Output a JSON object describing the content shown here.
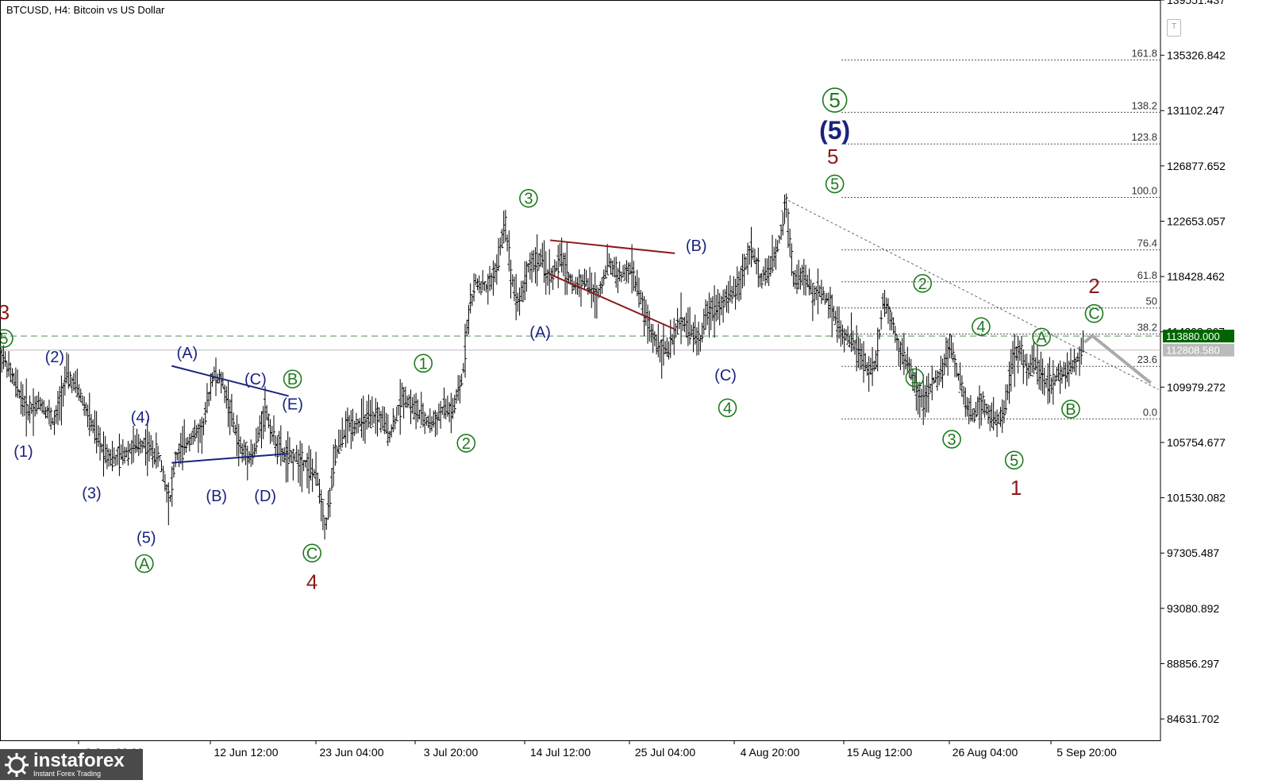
{
  "header": {
    "title": "BTCUSD, H4:  Bitcoin vs US Dollar"
  },
  "toolbar": {
    "t_label": "T"
  },
  "brand": {
    "name": "instaforex",
    "tagline": "Instant Forex Trading"
  },
  "colors": {
    "candle": "#000000",
    "wave_green": "#1e7a1e",
    "wave_blue": "#1a237e",
    "wave_red": "#8b1a1a",
    "fib_line": "#555555",
    "dashed_level": "#6a9a6a",
    "current_level": "#bbbbbb",
    "forecast": "#aaaaaa",
    "label_green_bg": "#006400"
  },
  "chart_data": {
    "type": "line",
    "title": "BTCUSD, H4:  Bitcoin vs US Dollar",
    "ylim": [
      83000,
      139551.437
    ],
    "y_tick_labels": [
      "139551.437",
      "135326.842",
      "131102.247",
      "126877.652",
      "122653.057",
      "118428.462",
      "114203.867",
      "109979.272",
      "105754.677",
      "101530.082",
      "97305.487",
      "93080.892",
      "88856.297",
      "84631.702"
    ],
    "x_tick_labels": [
      "2 Jun 20:00",
      "12 Jun 12:00",
      "23 Jun 04:00",
      "3 Jul 20:00",
      "14 Jul 12:00",
      "25 Jul 04:00",
      "4 Aug 20:00",
      "15 Aug 12:00",
      "26 Aug 04:00",
      "5 Sep 20:00"
    ],
    "series": [
      {
        "type": "price-path",
        "points": [
          [
            0,
            112800
          ],
          [
            0.35,
            110500
          ],
          [
            0.7,
            108200
          ],
          [
            1.05,
            108800
          ],
          [
            1.4,
            107200
          ],
          [
            1.7,
            110900
          ],
          [
            2.0,
            109800
          ],
          [
            2.3,
            107500
          ],
          [
            2.6,
            105400
          ],
          [
            2.95,
            104400
          ],
          [
            3.3,
            105200
          ],
          [
            3.7,
            105700
          ],
          [
            4.1,
            104500
          ],
          [
            4.35,
            101200
          ],
          [
            4.5,
            104500
          ],
          [
            4.9,
            106200
          ],
          [
            5.2,
            106700
          ],
          [
            5.45,
            110900
          ],
          [
            5.7,
            110400
          ],
          [
            6.0,
            107000
          ],
          [
            6.2,
            105000
          ],
          [
            6.5,
            104800
          ],
          [
            6.8,
            108400
          ],
          [
            7.0,
            106200
          ],
          [
            7.3,
            104600
          ],
          [
            7.6,
            104600
          ],
          [
            7.85,
            104100
          ],
          [
            8.15,
            102900
          ],
          [
            8.35,
            99200
          ],
          [
            8.6,
            104800
          ],
          [
            8.9,
            107000
          ],
          [
            9.3,
            107300
          ],
          [
            9.7,
            107800
          ],
          [
            10.0,
            106400
          ],
          [
            10.35,
            109400
          ],
          [
            10.6,
            108400
          ],
          [
            10.9,
            107400
          ],
          [
            11.1,
            107200
          ],
          [
            11.4,
            108400
          ],
          [
            11.6,
            108000
          ],
          [
            11.85,
            110500
          ],
          [
            12.0,
            115500
          ],
          [
            12.2,
            118000
          ],
          [
            12.5,
            117500
          ],
          [
            12.75,
            119200
          ],
          [
            12.95,
            122800
          ],
          [
            13.1,
            118600
          ],
          [
            13.3,
            116300
          ],
          [
            13.55,
            119200
          ],
          [
            13.85,
            119800
          ],
          [
            14.1,
            118300
          ],
          [
            14.4,
            119800
          ],
          [
            14.7,
            117600
          ],
          [
            15.0,
            118200
          ],
          [
            15.3,
            116800
          ],
          [
            15.6,
            119500
          ],
          [
            15.9,
            118400
          ],
          [
            16.2,
            119000
          ],
          [
            16.45,
            116400
          ],
          [
            16.7,
            114000
          ],
          [
            16.95,
            113000
          ],
          [
            17.15,
            112800
          ],
          [
            17.45,
            115200
          ],
          [
            17.7,
            114300
          ],
          [
            17.95,
            113500
          ],
          [
            18.15,
            115800
          ],
          [
            18.45,
            116300
          ],
          [
            18.75,
            117000
          ],
          [
            19.0,
            118200
          ],
          [
            19.25,
            120800
          ],
          [
            19.5,
            118200
          ],
          [
            19.75,
            119000
          ],
          [
            19.95,
            120800
          ],
          [
            20.15,
            124200
          ],
          [
            20.35,
            118200
          ],
          [
            20.6,
            118500
          ],
          [
            20.85,
            117000
          ],
          [
            21.05,
            117300
          ],
          [
            21.3,
            116300
          ],
          [
            21.55,
            114200
          ],
          [
            21.85,
            113500
          ],
          [
            22.05,
            112500
          ],
          [
            22.25,
            111200
          ],
          [
            22.45,
            111800
          ],
          [
            22.65,
            116800
          ],
          [
            22.85,
            115300
          ],
          [
            23.05,
            113000
          ],
          [
            23.3,
            111500
          ],
          [
            23.5,
            109800
          ],
          [
            23.7,
            108800
          ],
          [
            23.95,
            110500
          ],
          [
            24.15,
            111000
          ],
          [
            24.35,
            113400
          ],
          [
            24.55,
            111000
          ],
          [
            24.75,
            108800
          ],
          [
            24.95,
            107700
          ],
          [
            25.15,
            109000
          ],
          [
            25.35,
            107900
          ],
          [
            25.55,
            107200
          ],
          [
            25.75,
            108400
          ],
          [
            25.95,
            111800
          ],
          [
            26.15,
            112900
          ],
          [
            26.35,
            111300
          ],
          [
            26.55,
            111800
          ],
          [
            26.75,
            110500
          ],
          [
            26.95,
            110200
          ],
          [
            27.15,
            110900
          ],
          [
            27.35,
            111200
          ],
          [
            27.6,
            111900
          ],
          [
            27.8,
            113400
          ]
        ]
      },
      {
        "type": "forecast",
        "points": [
          [
            27.8,
            113400
          ],
          [
            28.0,
            113900
          ],
          [
            29.5,
            110300
          ]
        ]
      }
    ],
    "x_domain": [
      0,
      29.75
    ],
    "levels": [
      {
        "label": "161.8",
        "value": 134967
      },
      {
        "label": "138.2",
        "value": 130976
      },
      {
        "label": "123.8",
        "value": 128555
      },
      {
        "label": "100.0",
        "value": 124475
      },
      {
        "label": "76.4",
        "value": 120458
      },
      {
        "label": "61.8",
        "value": 118025
      },
      {
        "label": "50",
        "value": 116027
      },
      {
        "label": "38.2",
        "value": 114036
      },
      {
        "label": "23.6",
        "value": 111567
      },
      {
        "label": "0.0",
        "value": 107552
      }
    ],
    "horizontal_lines": [
      {
        "label": "113880.000",
        "value": 113880,
        "style": "dashed"
      },
      {
        "label": "112808.580",
        "value": 112808.58,
        "style": "solid"
      }
    ],
    "trendlines": [
      {
        "color": "blue",
        "from": [
          4.4,
          111600
        ],
        "to": [
          7.4,
          109300
        ]
      },
      {
        "color": "blue",
        "from": [
          4.4,
          104200
        ],
        "to": [
          7.4,
          104900
        ]
      },
      {
        "color": "red",
        "from": [
          14.1,
          121200
        ],
        "to": [
          17.3,
          120200
        ]
      },
      {
        "color": "red",
        "from": [
          14.1,
          118600
        ],
        "to": [
          17.3,
          114400
        ]
      },
      {
        "color": "dotted",
        "from": [
          20.1,
          124400
        ],
        "to": [
          29.7,
          109800
        ]
      }
    ],
    "annotations": [
      {
        "text": "3",
        "color": "red",
        "x": 0.1,
        "y": 115700,
        "circle": false,
        "size": "l"
      },
      {
        "text": "5",
        "color": "green",
        "x": 0.1,
        "y": 113700,
        "circle": true,
        "size": "m"
      },
      {
        "text": "(2)",
        "color": "blue",
        "x": 1.4,
        "y": 112300,
        "circle": false,
        "size": "m"
      },
      {
        "text": "(1)",
        "color": "blue",
        "x": 0.6,
        "y": 105100,
        "circle": false,
        "size": "m"
      },
      {
        "text": "(3)",
        "color": "blue",
        "x": 2.35,
        "y": 101900,
        "circle": false,
        "size": "m"
      },
      {
        "text": "(4)",
        "color": "blue",
        "x": 3.6,
        "y": 107700,
        "circle": false,
        "size": "m"
      },
      {
        "text": "(5)",
        "color": "blue",
        "x": 3.75,
        "y": 98500,
        "circle": false,
        "size": "m"
      },
      {
        "text": "A",
        "color": "green",
        "x": 3.7,
        "y": 96500,
        "circle": true,
        "size": "m"
      },
      {
        "text": "(A)",
        "color": "blue",
        "x": 4.8,
        "y": 112600,
        "circle": false,
        "size": "m"
      },
      {
        "text": "(B)",
        "color": "blue",
        "x": 5.55,
        "y": 101700,
        "circle": false,
        "size": "m"
      },
      {
        "text": "(C)",
        "color": "blue",
        "x": 6.55,
        "y": 110600,
        "circle": false,
        "size": "m"
      },
      {
        "text": "B",
        "color": "green",
        "x": 7.5,
        "y": 110600,
        "circle": true,
        "size": "m"
      },
      {
        "text": "(D)",
        "color": "blue",
        "x": 6.8,
        "y": 101700,
        "circle": false,
        "size": "m"
      },
      {
        "text": "(E)",
        "color": "blue",
        "x": 7.5,
        "y": 108700,
        "circle": false,
        "size": "m"
      },
      {
        "text": "C",
        "color": "green",
        "x": 8.0,
        "y": 97300,
        "circle": true,
        "size": "m"
      },
      {
        "text": "4",
        "color": "red",
        "x": 8.0,
        "y": 95100,
        "circle": false,
        "size": "l"
      },
      {
        "text": "1",
        "color": "green",
        "x": 10.85,
        "y": 111800,
        "circle": true,
        "size": "m"
      },
      {
        "text": "2",
        "color": "green",
        "x": 11.95,
        "y": 105700,
        "circle": true,
        "size": "m"
      },
      {
        "text": "3",
        "color": "green",
        "x": 13.55,
        "y": 124400,
        "circle": true,
        "size": "m"
      },
      {
        "text": "(A)",
        "color": "blue",
        "x": 13.85,
        "y": 114200,
        "circle": false,
        "size": "m"
      },
      {
        "text": "(B)",
        "color": "blue",
        "x": 17.85,
        "y": 120800,
        "circle": false,
        "size": "m"
      },
      {
        "text": "(C)",
        "color": "blue",
        "x": 18.6,
        "y": 110900,
        "circle": false,
        "size": "m"
      },
      {
        "text": "4",
        "color": "green",
        "x": 18.65,
        "y": 108400,
        "circle": true,
        "size": "m"
      },
      {
        "text": "5",
        "color": "green",
        "x": 21.4,
        "y": 131900,
        "circle": true,
        "size": "l"
      },
      {
        "text": "(5)",
        "color": "blue",
        "x": 21.4,
        "y": 129600,
        "circle": false,
        "size": "xl"
      },
      {
        "text": "5",
        "color": "red",
        "x": 21.35,
        "y": 127600,
        "circle": false,
        "size": "l"
      },
      {
        "text": "5",
        "color": "green",
        "x": 21.4,
        "y": 125500,
        "circle": true,
        "size": "m"
      },
      {
        "text": "2",
        "color": "green",
        "x": 23.65,
        "y": 117900,
        "circle": true,
        "size": "m"
      },
      {
        "text": "1",
        "color": "green",
        "x": 23.45,
        "y": 110700,
        "circle": true,
        "size": "m"
      },
      {
        "text": "3",
        "color": "green",
        "x": 24.4,
        "y": 106000,
        "circle": true,
        "size": "m"
      },
      {
        "text": "4",
        "color": "green",
        "x": 25.15,
        "y": 114600,
        "circle": true,
        "size": "m"
      },
      {
        "text": "5",
        "color": "green",
        "x": 26.0,
        "y": 104400,
        "circle": true,
        "size": "m"
      },
      {
        "text": "1",
        "color": "red",
        "x": 26.05,
        "y": 102300,
        "circle": false,
        "size": "l"
      },
      {
        "text": "A",
        "color": "green",
        "x": 26.7,
        "y": 113800,
        "circle": true,
        "size": "m"
      },
      {
        "text": "B",
        "color": "green",
        "x": 27.45,
        "y": 108300,
        "circle": true,
        "size": "m"
      },
      {
        "text": "2",
        "color": "red",
        "x": 28.05,
        "y": 117700,
        "circle": false,
        "size": "l"
      },
      {
        "text": "C",
        "color": "green",
        "x": 28.05,
        "y": 115600,
        "circle": true,
        "size": "m"
      }
    ]
  }
}
